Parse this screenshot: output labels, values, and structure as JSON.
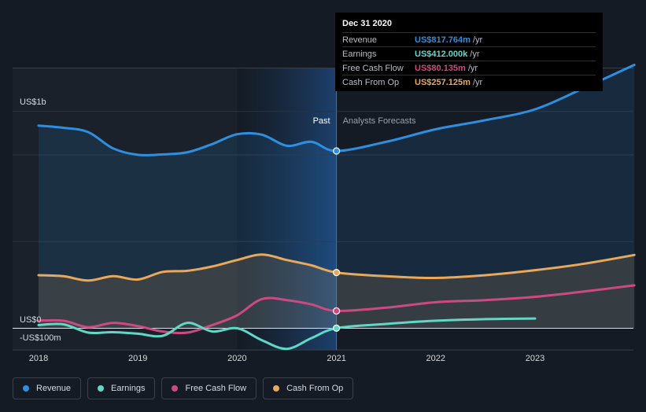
{
  "chart_data": {
    "type": "area",
    "y_top_label": "US$1b",
    "y_zero_label": "US$0",
    "y_bottom_label": "-US$100m",
    "ylim": [
      -100,
      1200
    ],
    "xlim": [
      2018,
      2024.0
    ],
    "x_ticks": [
      "2018",
      "2019",
      "2020",
      "2021",
      "2022",
      "2023"
    ],
    "divider_x": 2021,
    "past_label": "Past",
    "forecast_label": "Analysts Forecasts",
    "series": [
      {
        "name": "Revenue",
        "color": "#2e8fe0",
        "fill": true,
        "points": [
          [
            2018,
            935
          ],
          [
            2018.25,
            925
          ],
          [
            2018.5,
            905
          ],
          [
            2018.75,
            830
          ],
          [
            2019,
            800
          ],
          [
            2019.25,
            802
          ],
          [
            2019.5,
            812
          ],
          [
            2019.75,
            850
          ],
          [
            2020,
            895
          ],
          [
            2020.25,
            893
          ],
          [
            2020.5,
            842
          ],
          [
            2020.75,
            860
          ],
          [
            2021,
            818
          ],
          [
            2021.5,
            860
          ],
          [
            2022,
            918
          ],
          [
            2022.5,
            960
          ],
          [
            2023,
            1010
          ],
          [
            2023.5,
            1110
          ],
          [
            2024.0,
            1215
          ]
        ]
      },
      {
        "name": "Cash From Op",
        "color": "#e8a95c",
        "fill": true,
        "points": [
          [
            2018,
            245
          ],
          [
            2018.25,
            240
          ],
          [
            2018.5,
            220
          ],
          [
            2018.75,
            240
          ],
          [
            2019,
            225
          ],
          [
            2019.25,
            260
          ],
          [
            2019.5,
            265
          ],
          [
            2019.75,
            285
          ],
          [
            2020,
            315
          ],
          [
            2020.25,
            340
          ],
          [
            2020.5,
            315
          ],
          [
            2020.75,
            290
          ],
          [
            2021,
            257
          ],
          [
            2021.5,
            240
          ],
          [
            2022,
            232
          ],
          [
            2022.5,
            245
          ],
          [
            2023,
            268
          ],
          [
            2023.5,
            298
          ],
          [
            2024.0,
            338
          ]
        ]
      },
      {
        "name": "Free Cash Flow",
        "color": "#cc4a82",
        "fill": false,
        "points": [
          [
            2018,
            35
          ],
          [
            2018.25,
            35
          ],
          [
            2018.5,
            5
          ],
          [
            2018.75,
            25
          ],
          [
            2019,
            10
          ],
          [
            2019.25,
            -15
          ],
          [
            2019.5,
            -20
          ],
          [
            2019.75,
            15
          ],
          [
            2020,
            60
          ],
          [
            2020.25,
            135
          ],
          [
            2020.5,
            130
          ],
          [
            2020.75,
            110
          ],
          [
            2021,
            80
          ],
          [
            2021.5,
            95
          ],
          [
            2022,
            120
          ],
          [
            2022.5,
            130
          ],
          [
            2023,
            145
          ],
          [
            2023.5,
            170
          ],
          [
            2024.0,
            198
          ]
        ]
      },
      {
        "name": "Earnings",
        "color": "#61d7c6",
        "fill": false,
        "points": [
          [
            2018,
            15
          ],
          [
            2018.25,
            18
          ],
          [
            2018.5,
            -20
          ],
          [
            2018.75,
            -18
          ],
          [
            2019,
            -25
          ],
          [
            2019.25,
            -35
          ],
          [
            2019.5,
            25
          ],
          [
            2019.75,
            -15
          ],
          [
            2020,
            0
          ],
          [
            2020.25,
            -55
          ],
          [
            2020.5,
            -95
          ],
          [
            2020.75,
            -45
          ],
          [
            2021,
            0.4
          ],
          [
            2021.5,
            20
          ],
          [
            2022,
            35
          ],
          [
            2022.5,
            42
          ],
          [
            2023,
            45
          ]
        ]
      }
    ]
  },
  "tooltip": {
    "date": "Dec 31 2020",
    "rows": [
      {
        "label": "Revenue",
        "value": "US$817.764m",
        "unit": "/yr",
        "color": "#2e8fe0"
      },
      {
        "label": "Earnings",
        "value": "US$412.000k",
        "unit": "/yr",
        "color": "#61d7c6"
      },
      {
        "label": "Free Cash Flow",
        "value": "US$80.135m",
        "unit": "/yr",
        "color": "#cc4a82"
      },
      {
        "label": "Cash From Op",
        "value": "US$257.125m",
        "unit": "/yr",
        "color": "#e8a95c"
      }
    ]
  },
  "legend": [
    {
      "label": "Revenue",
      "color": "#2e8fe0"
    },
    {
      "label": "Earnings",
      "color": "#61d7c6"
    },
    {
      "label": "Free Cash Flow",
      "color": "#cc4a82"
    },
    {
      "label": "Cash From Op",
      "color": "#e8a95c"
    }
  ]
}
